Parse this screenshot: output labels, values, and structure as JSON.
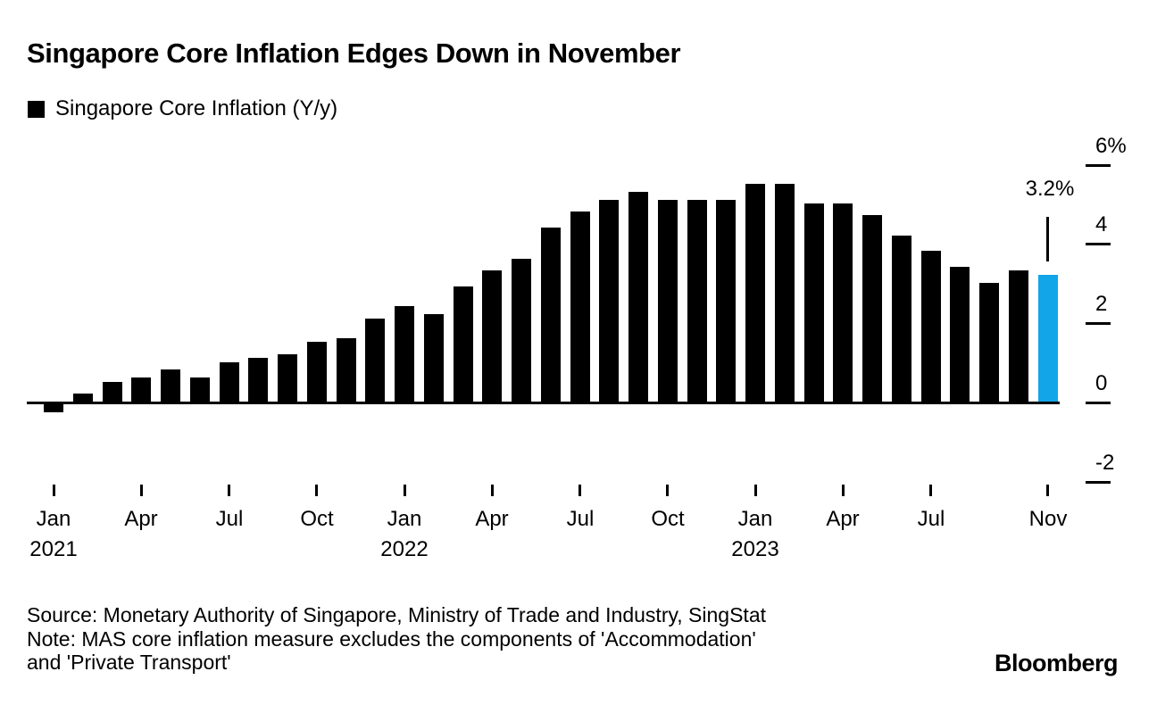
{
  "header": {
    "title": "Singapore Core Inflation Edges Down in November"
  },
  "legend": {
    "swatch_color": "#000000",
    "label": "Singapore Core Inflation (Y/y)"
  },
  "annotation": {
    "label": "3.2%"
  },
  "footer": {
    "source": "Source: Monetary Authority of Singapore, Ministry of Trade and Industry, SingStat",
    "note_line1": "Note: MAS core inflation measure excludes the components of 'Accommodation'",
    "note_line2": "and 'Private Transport'",
    "brand": "Bloomberg"
  },
  "chart_data": {
    "type": "bar",
    "title": "Singapore Core Inflation Edges Down in November",
    "series_name": "Singapore Core Inflation (Y/y)",
    "unit": "%",
    "grid": false,
    "legend_position": "top-left",
    "bar_color": "#000000",
    "highlight": {
      "index": 34,
      "color": "#12a5e8",
      "label": "3.2%"
    },
    "ylim": [
      -2,
      6
    ],
    "categories": [
      "Jan 2021",
      "Feb 2021",
      "Mar 2021",
      "Apr 2021",
      "May 2021",
      "Jun 2021",
      "Jul 2021",
      "Aug 2021",
      "Sep 2021",
      "Oct 2021",
      "Nov 2021",
      "Dec 2021",
      "Jan 2022",
      "Feb 2022",
      "Mar 2022",
      "Apr 2022",
      "May 2022",
      "Jun 2022",
      "Jul 2022",
      "Aug 2022",
      "Sep 2022",
      "Oct 2022",
      "Nov 2022",
      "Dec 2022",
      "Jan 2023",
      "Feb 2023",
      "Mar 2023",
      "Apr 2023",
      "May 2023",
      "Jun 2023",
      "Jul 2023",
      "Aug 2023",
      "Sep 2023",
      "Oct 2023",
      "Nov 2023"
    ],
    "values": [
      -0.2,
      0.2,
      0.5,
      0.6,
      0.8,
      0.6,
      1.0,
      1.1,
      1.2,
      1.5,
      1.6,
      2.1,
      2.4,
      2.2,
      2.9,
      3.3,
      3.6,
      4.4,
      4.8,
      5.1,
      5.3,
      5.1,
      5.1,
      5.1,
      5.5,
      5.5,
      5.0,
      5.0,
      4.7,
      4.2,
      3.8,
      3.4,
      3.0,
      3.3,
      3.2
    ],
    "y_ticks": [
      {
        "value": 6,
        "label": "6%"
      },
      {
        "value": 4,
        "label": "4"
      },
      {
        "value": 2,
        "label": "2"
      },
      {
        "value": 0,
        "label": "0"
      },
      {
        "value": -2,
        "label": "-2"
      }
    ],
    "x_ticks": [
      {
        "month_index": 0,
        "label": "Jan",
        "year": "2021"
      },
      {
        "month_index": 3,
        "label": "Apr"
      },
      {
        "month_index": 6,
        "label": "Jul"
      },
      {
        "month_index": 9,
        "label": "Oct"
      },
      {
        "month_index": 12,
        "label": "Jan",
        "year": "2022"
      },
      {
        "month_index": 15,
        "label": "Apr"
      },
      {
        "month_index": 18,
        "label": "Jul"
      },
      {
        "month_index": 21,
        "label": "Oct"
      },
      {
        "month_index": 24,
        "label": "Jan",
        "year": "2023"
      },
      {
        "month_index": 27,
        "label": "Apr"
      },
      {
        "month_index": 30,
        "label": "Jul"
      },
      {
        "month_index": 34,
        "label": "Nov"
      }
    ]
  }
}
